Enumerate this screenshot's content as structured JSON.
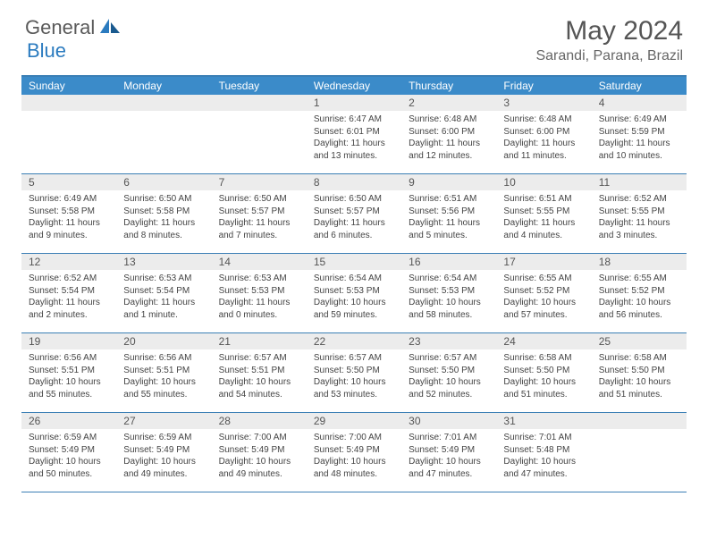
{
  "logo": {
    "first": "General",
    "second": "Blue"
  },
  "title": "May 2024",
  "location": "Sarandi, Parana, Brazil",
  "colors": {
    "header_bg": "#3b8bc9",
    "border": "#3b7fb5",
    "daynum_bg": "#ececec",
    "text_dark": "#555",
    "text_body": "#444"
  },
  "day_names": [
    "Sunday",
    "Monday",
    "Tuesday",
    "Wednesday",
    "Thursday",
    "Friday",
    "Saturday"
  ],
  "weeks": [
    [
      {
        "n": "",
        "sr": "",
        "ss": "",
        "dl": ""
      },
      {
        "n": "",
        "sr": "",
        "ss": "",
        "dl": ""
      },
      {
        "n": "",
        "sr": "",
        "ss": "",
        "dl": ""
      },
      {
        "n": "1",
        "sr": "Sunrise: 6:47 AM",
        "ss": "Sunset: 6:01 PM",
        "dl": "Daylight: 11 hours and 13 minutes."
      },
      {
        "n": "2",
        "sr": "Sunrise: 6:48 AM",
        "ss": "Sunset: 6:00 PM",
        "dl": "Daylight: 11 hours and 12 minutes."
      },
      {
        "n": "3",
        "sr": "Sunrise: 6:48 AM",
        "ss": "Sunset: 6:00 PM",
        "dl": "Daylight: 11 hours and 11 minutes."
      },
      {
        "n": "4",
        "sr": "Sunrise: 6:49 AM",
        "ss": "Sunset: 5:59 PM",
        "dl": "Daylight: 11 hours and 10 minutes."
      }
    ],
    [
      {
        "n": "5",
        "sr": "Sunrise: 6:49 AM",
        "ss": "Sunset: 5:58 PM",
        "dl": "Daylight: 11 hours and 9 minutes."
      },
      {
        "n": "6",
        "sr": "Sunrise: 6:50 AM",
        "ss": "Sunset: 5:58 PM",
        "dl": "Daylight: 11 hours and 8 minutes."
      },
      {
        "n": "7",
        "sr": "Sunrise: 6:50 AM",
        "ss": "Sunset: 5:57 PM",
        "dl": "Daylight: 11 hours and 7 minutes."
      },
      {
        "n": "8",
        "sr": "Sunrise: 6:50 AM",
        "ss": "Sunset: 5:57 PM",
        "dl": "Daylight: 11 hours and 6 minutes."
      },
      {
        "n": "9",
        "sr": "Sunrise: 6:51 AM",
        "ss": "Sunset: 5:56 PM",
        "dl": "Daylight: 11 hours and 5 minutes."
      },
      {
        "n": "10",
        "sr": "Sunrise: 6:51 AM",
        "ss": "Sunset: 5:55 PM",
        "dl": "Daylight: 11 hours and 4 minutes."
      },
      {
        "n": "11",
        "sr": "Sunrise: 6:52 AM",
        "ss": "Sunset: 5:55 PM",
        "dl": "Daylight: 11 hours and 3 minutes."
      }
    ],
    [
      {
        "n": "12",
        "sr": "Sunrise: 6:52 AM",
        "ss": "Sunset: 5:54 PM",
        "dl": "Daylight: 11 hours and 2 minutes."
      },
      {
        "n": "13",
        "sr": "Sunrise: 6:53 AM",
        "ss": "Sunset: 5:54 PM",
        "dl": "Daylight: 11 hours and 1 minute."
      },
      {
        "n": "14",
        "sr": "Sunrise: 6:53 AM",
        "ss": "Sunset: 5:53 PM",
        "dl": "Daylight: 11 hours and 0 minutes."
      },
      {
        "n": "15",
        "sr": "Sunrise: 6:54 AM",
        "ss": "Sunset: 5:53 PM",
        "dl": "Daylight: 10 hours and 59 minutes."
      },
      {
        "n": "16",
        "sr": "Sunrise: 6:54 AM",
        "ss": "Sunset: 5:53 PM",
        "dl": "Daylight: 10 hours and 58 minutes."
      },
      {
        "n": "17",
        "sr": "Sunrise: 6:55 AM",
        "ss": "Sunset: 5:52 PM",
        "dl": "Daylight: 10 hours and 57 minutes."
      },
      {
        "n": "18",
        "sr": "Sunrise: 6:55 AM",
        "ss": "Sunset: 5:52 PM",
        "dl": "Daylight: 10 hours and 56 minutes."
      }
    ],
    [
      {
        "n": "19",
        "sr": "Sunrise: 6:56 AM",
        "ss": "Sunset: 5:51 PM",
        "dl": "Daylight: 10 hours and 55 minutes."
      },
      {
        "n": "20",
        "sr": "Sunrise: 6:56 AM",
        "ss": "Sunset: 5:51 PM",
        "dl": "Daylight: 10 hours and 55 minutes."
      },
      {
        "n": "21",
        "sr": "Sunrise: 6:57 AM",
        "ss": "Sunset: 5:51 PM",
        "dl": "Daylight: 10 hours and 54 minutes."
      },
      {
        "n": "22",
        "sr": "Sunrise: 6:57 AM",
        "ss": "Sunset: 5:50 PM",
        "dl": "Daylight: 10 hours and 53 minutes."
      },
      {
        "n": "23",
        "sr": "Sunrise: 6:57 AM",
        "ss": "Sunset: 5:50 PM",
        "dl": "Daylight: 10 hours and 52 minutes."
      },
      {
        "n": "24",
        "sr": "Sunrise: 6:58 AM",
        "ss": "Sunset: 5:50 PM",
        "dl": "Daylight: 10 hours and 51 minutes."
      },
      {
        "n": "25",
        "sr": "Sunrise: 6:58 AM",
        "ss": "Sunset: 5:50 PM",
        "dl": "Daylight: 10 hours and 51 minutes."
      }
    ],
    [
      {
        "n": "26",
        "sr": "Sunrise: 6:59 AM",
        "ss": "Sunset: 5:49 PM",
        "dl": "Daylight: 10 hours and 50 minutes."
      },
      {
        "n": "27",
        "sr": "Sunrise: 6:59 AM",
        "ss": "Sunset: 5:49 PM",
        "dl": "Daylight: 10 hours and 49 minutes."
      },
      {
        "n": "28",
        "sr": "Sunrise: 7:00 AM",
        "ss": "Sunset: 5:49 PM",
        "dl": "Daylight: 10 hours and 49 minutes."
      },
      {
        "n": "29",
        "sr": "Sunrise: 7:00 AM",
        "ss": "Sunset: 5:49 PM",
        "dl": "Daylight: 10 hours and 48 minutes."
      },
      {
        "n": "30",
        "sr": "Sunrise: 7:01 AM",
        "ss": "Sunset: 5:49 PM",
        "dl": "Daylight: 10 hours and 47 minutes."
      },
      {
        "n": "31",
        "sr": "Sunrise: 7:01 AM",
        "ss": "Sunset: 5:48 PM",
        "dl": "Daylight: 10 hours and 47 minutes."
      },
      {
        "n": "",
        "sr": "",
        "ss": "",
        "dl": ""
      }
    ]
  ]
}
